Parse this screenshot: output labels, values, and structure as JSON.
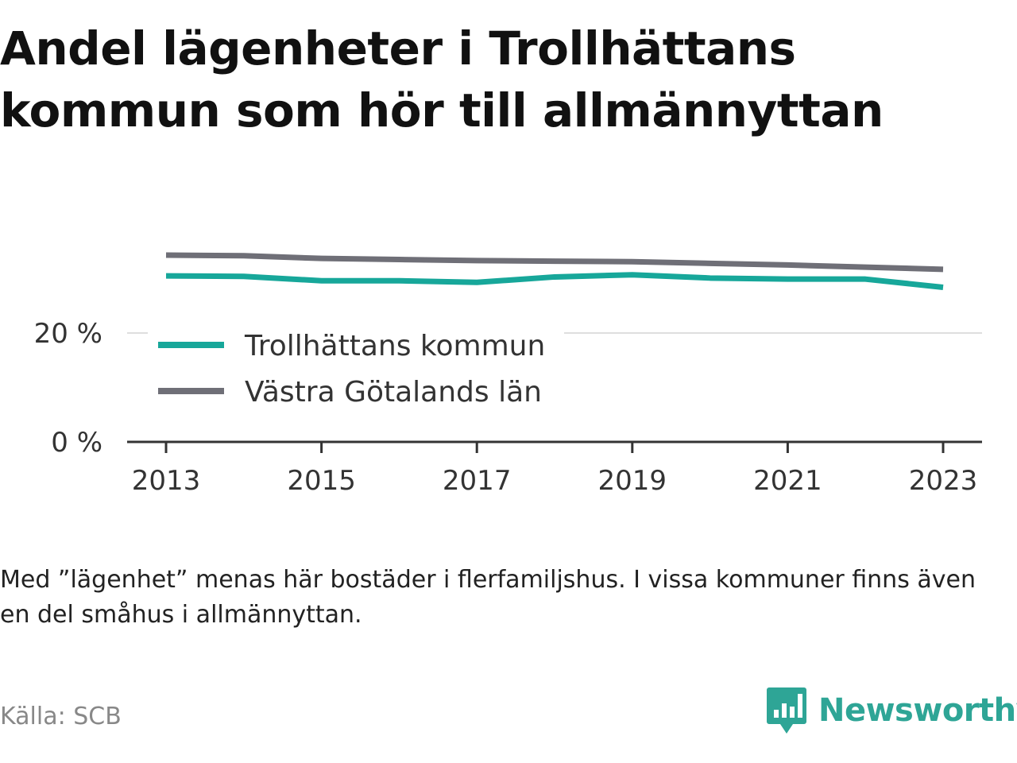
{
  "title": "Andel lägenheter i Trollhättans kommun som hör till allmännyttan",
  "note": "Med ”lägenhet” menas här bostäder i flerfamiljshus. I vissa kommuner finns även en del småhus i allmännyttan.",
  "source": "Källa: SCB",
  "brand": {
    "name": "Newsworthy",
    "logo_icon": "bar-chart-speech-bubble-icon",
    "color": "#2ea596"
  },
  "chart_data": {
    "type": "line",
    "x": [
      2013,
      2014,
      2015,
      2016,
      2017,
      2018,
      2019,
      2020,
      2021,
      2022,
      2023
    ],
    "xticks": [
      "2013",
      "2015",
      "2017",
      "2019",
      "2021",
      "2023"
    ],
    "yticks": [
      "0 %",
      "20 %"
    ],
    "ylim": [
      0,
      35
    ],
    "grid": true,
    "legend_position": "inside, left, below the 20 % gridline",
    "series": [
      {
        "name": "Trollhättans kommun",
        "color": "#17a79a",
        "values": [
          30.5,
          30.4,
          29.6,
          29.6,
          29.3,
          30.3,
          30.7,
          30.1,
          29.9,
          29.9,
          28.4
        ]
      },
      {
        "name": "Västra Götalands län",
        "color": "#6f6f77",
        "values": [
          34.3,
          34.2,
          33.7,
          33.5,
          33.3,
          33.2,
          33.1,
          32.8,
          32.5,
          32.1,
          31.7
        ]
      }
    ]
  }
}
